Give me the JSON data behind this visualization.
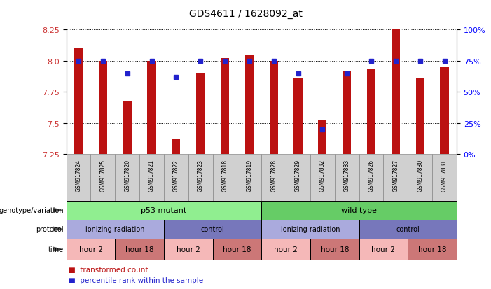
{
  "title": "GDS4611 / 1628092_at",
  "samples": [
    "GSM917824",
    "GSM917825",
    "GSM917820",
    "GSM917821",
    "GSM917822",
    "GSM917823",
    "GSM917818",
    "GSM917819",
    "GSM917828",
    "GSM917829",
    "GSM917832",
    "GSM917833",
    "GSM917826",
    "GSM917827",
    "GSM917830",
    "GSM917831"
  ],
  "bar_values": [
    8.1,
    8.0,
    7.68,
    8.0,
    7.37,
    7.9,
    8.02,
    8.05,
    8.0,
    7.86,
    7.52,
    7.92,
    7.93,
    8.25,
    7.86,
    7.95
  ],
  "percentile_values": [
    75,
    75,
    65,
    75,
    62,
    75,
    75,
    75,
    75,
    65,
    20,
    65,
    75,
    75,
    75,
    75
  ],
  "ylim_left": [
    7.25,
    8.25
  ],
  "ylim_right": [
    0,
    100
  ],
  "yticks_left": [
    7.25,
    7.5,
    7.75,
    8.0,
    8.25
  ],
  "yticks_right": [
    0,
    25,
    50,
    75,
    100
  ],
  "bar_color": "#bb1111",
  "dot_color": "#2222cc",
  "genotype_groups": [
    {
      "label": "p53 mutant",
      "start": 0,
      "end": 8,
      "color": "#90ee90"
    },
    {
      "label": "wild type",
      "start": 8,
      "end": 16,
      "color": "#66cc66"
    }
  ],
  "protocol_groups": [
    {
      "label": "ionizing radiation",
      "start": 0,
      "end": 4,
      "color": "#aaaadd"
    },
    {
      "label": "control",
      "start": 4,
      "end": 8,
      "color": "#7777bb"
    },
    {
      "label": "ionizing radiation",
      "start": 8,
      "end": 12,
      "color": "#aaaadd"
    },
    {
      "label": "control",
      "start": 12,
      "end": 16,
      "color": "#7777bb"
    }
  ],
  "time_groups": [
    {
      "label": "hour 2",
      "start": 0,
      "end": 2,
      "color": "#f5b8b8"
    },
    {
      "label": "hour 18",
      "start": 2,
      "end": 4,
      "color": "#cc7777"
    },
    {
      "label": "hour 2",
      "start": 4,
      "end": 6,
      "color": "#f5b8b8"
    },
    {
      "label": "hour 18",
      "start": 6,
      "end": 8,
      "color": "#cc7777"
    },
    {
      "label": "hour 2",
      "start": 8,
      "end": 10,
      "color": "#f5b8b8"
    },
    {
      "label": "hour 18",
      "start": 10,
      "end": 12,
      "color": "#cc7777"
    },
    {
      "label": "hour 2",
      "start": 12,
      "end": 14,
      "color": "#f5b8b8"
    },
    {
      "label": "hour 18",
      "start": 14,
      "end": 16,
      "color": "#cc7777"
    }
  ],
  "sample_bg": "#d0d0d0",
  "left_label_color": "#888888"
}
